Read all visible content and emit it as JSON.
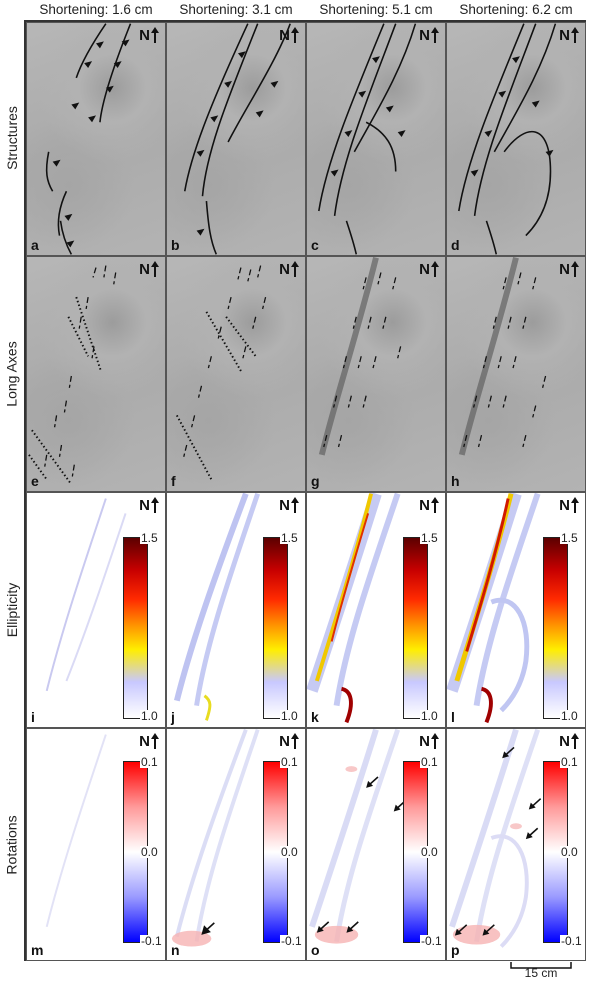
{
  "columns": [
    "Shortening: 1.6 cm",
    "Shortening: 3.1 cm",
    "Shortening: 5.1 cm",
    "Shortening: 6.2 cm"
  ],
  "rows": [
    "Structures",
    "Long Axes",
    "Ellipticity",
    "Rotations"
  ],
  "north_label": "N",
  "panel_letters": [
    "a",
    "b",
    "c",
    "d",
    "e",
    "f",
    "g",
    "h",
    "i",
    "j",
    "k",
    "l",
    "m",
    "n",
    "o",
    "p"
  ],
  "ellipticity_scale": {
    "max": "1.5",
    "min": "1.0"
  },
  "rotation_scale": {
    "max": "0.1",
    "mid": "0.0",
    "min": "-0.1"
  },
  "scale_bar": "15 cm"
}
